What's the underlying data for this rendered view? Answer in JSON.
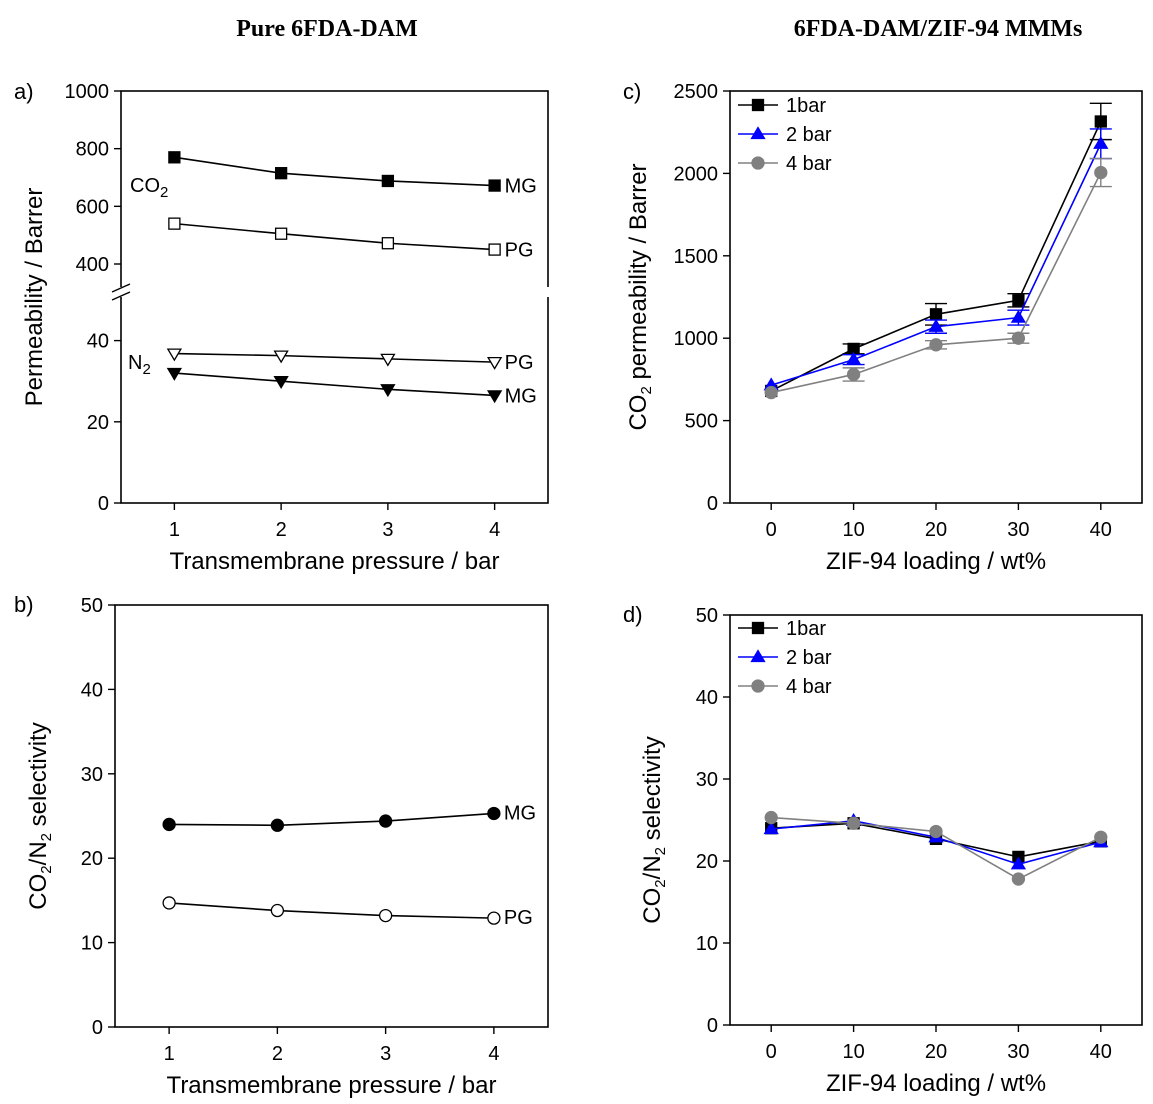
{
  "column_titles": {
    "left": "Pure 6FDA-DAM",
    "right": "6FDA-DAM/ZIF-94 MMMs"
  },
  "chart_data": [
    {
      "panel": "a)",
      "type": "line",
      "xlabel": "Transmembrane pressure / bar",
      "ylabel": "Permeability / Barrer",
      "x": [
        1,
        2,
        3,
        4
      ],
      "x_ticks": [
        "1",
        "2",
        "3",
        "4"
      ],
      "xlim": [
        0.5,
        4.5
      ],
      "y_axis_break": true,
      "ylim_lower": [
        0,
        50
      ],
      "ylim_upper": [
        300,
        1000
      ],
      "y_ticks_lower": [
        "0",
        "20",
        "40"
      ],
      "y_ticks_upper": [
        "400",
        "600",
        "800",
        "1000"
      ],
      "groups": [
        {
          "label": "CO2",
          "label_text": "CO",
          "label_sub": "2"
        },
        {
          "label": "N2",
          "label_text": "N",
          "label_sub": "2"
        }
      ],
      "series": [
        {
          "name": "MG",
          "gas": "CO2",
          "marker": "square-filled",
          "values": [
            770,
            715,
            688,
            672
          ]
        },
        {
          "name": "PG",
          "gas": "CO2",
          "marker": "square-open",
          "values": [
            540,
            505,
            472,
            450
          ]
        },
        {
          "name": "PG",
          "gas": "N2",
          "marker": "triangle-down-open",
          "values": [
            36.8,
            36.3,
            35.5,
            34.7
          ]
        },
        {
          "name": "MG",
          "gas": "N2",
          "marker": "triangle-down-filled",
          "values": [
            32.0,
            30.0,
            28.0,
            26.5
          ]
        }
      ]
    },
    {
      "panel": "b)",
      "type": "line",
      "xlabel": "Transmembrane pressure / bar",
      "ylabel_parts": [
        "CO",
        "2",
        "/N",
        "2",
        " selectivity"
      ],
      "x": [
        1,
        2,
        3,
        4
      ],
      "x_ticks": [
        "1",
        "2",
        "3",
        "4"
      ],
      "xlim": [
        0.5,
        4.5
      ],
      "ylim": [
        0,
        50
      ],
      "y_ticks": [
        "0",
        "10",
        "20",
        "30",
        "40",
        "50"
      ],
      "series": [
        {
          "name": "MG",
          "marker": "circle-filled",
          "values": [
            24.0,
            23.9,
            24.4,
            25.3
          ]
        },
        {
          "name": "PG",
          "marker": "circle-open",
          "values": [
            14.7,
            13.8,
            13.2,
            12.9
          ]
        }
      ]
    },
    {
      "panel": "c)",
      "type": "line",
      "xlabel": "ZIF-94 loading / wt%",
      "ylabel_parts": [
        "CO",
        "2",
        " permeability / Barrer"
      ],
      "x": [
        0,
        10,
        20,
        30,
        40
      ],
      "x_ticks": [
        "0",
        "10",
        "20",
        "30",
        "40"
      ],
      "xlim": [
        -5,
        45
      ],
      "ylim": [
        0,
        2500
      ],
      "y_ticks": [
        "0",
        "500",
        "1000",
        "1500",
        "2000",
        "2500"
      ],
      "legend": "top-left",
      "series": [
        {
          "name": "1bar",
          "color": "#000000",
          "marker": "square",
          "values": [
            680,
            935,
            1145,
            1230,
            2315
          ],
          "errors": [
            0,
            30,
            65,
            40,
            110
          ]
        },
        {
          "name": "2 bar",
          "color": "#0000ff",
          "marker": "triangle-up",
          "values": [
            715,
            870,
            1070,
            1125,
            2180
          ],
          "errors": [
            0,
            30,
            40,
            45,
            90
          ]
        },
        {
          "name": "4 bar",
          "color": "#808080",
          "marker": "circle",
          "values": [
            670,
            780,
            960,
            1000,
            2005
          ],
          "errors": [
            0,
            40,
            25,
            30,
            85
          ]
        }
      ]
    },
    {
      "panel": "d)",
      "type": "line",
      "xlabel": "ZIF-94 loading / wt%",
      "ylabel_parts": [
        "CO",
        "2",
        "/N",
        "2",
        " selectivity"
      ],
      "x": [
        0,
        10,
        20,
        30,
        40
      ],
      "x_ticks": [
        "0",
        "10",
        "20",
        "30",
        "40"
      ],
      "xlim": [
        -5,
        45
      ],
      "ylim": [
        0,
        50
      ],
      "y_ticks": [
        "0",
        "10",
        "20",
        "30",
        "40",
        "50"
      ],
      "legend": "top-left",
      "series": [
        {
          "name": "1bar",
          "color": "#000000",
          "marker": "square",
          "values": [
            24.0,
            24.6,
            22.7,
            20.5,
            22.4
          ]
        },
        {
          "name": "2 bar",
          "color": "#0000ff",
          "marker": "triangle-up",
          "values": [
            23.9,
            24.9,
            22.9,
            19.6,
            22.3
          ]
        },
        {
          "name": "4 bar",
          "color": "#808080",
          "marker": "circle",
          "values": [
            25.3,
            24.6,
            23.6,
            17.8,
            22.9
          ]
        }
      ]
    }
  ]
}
